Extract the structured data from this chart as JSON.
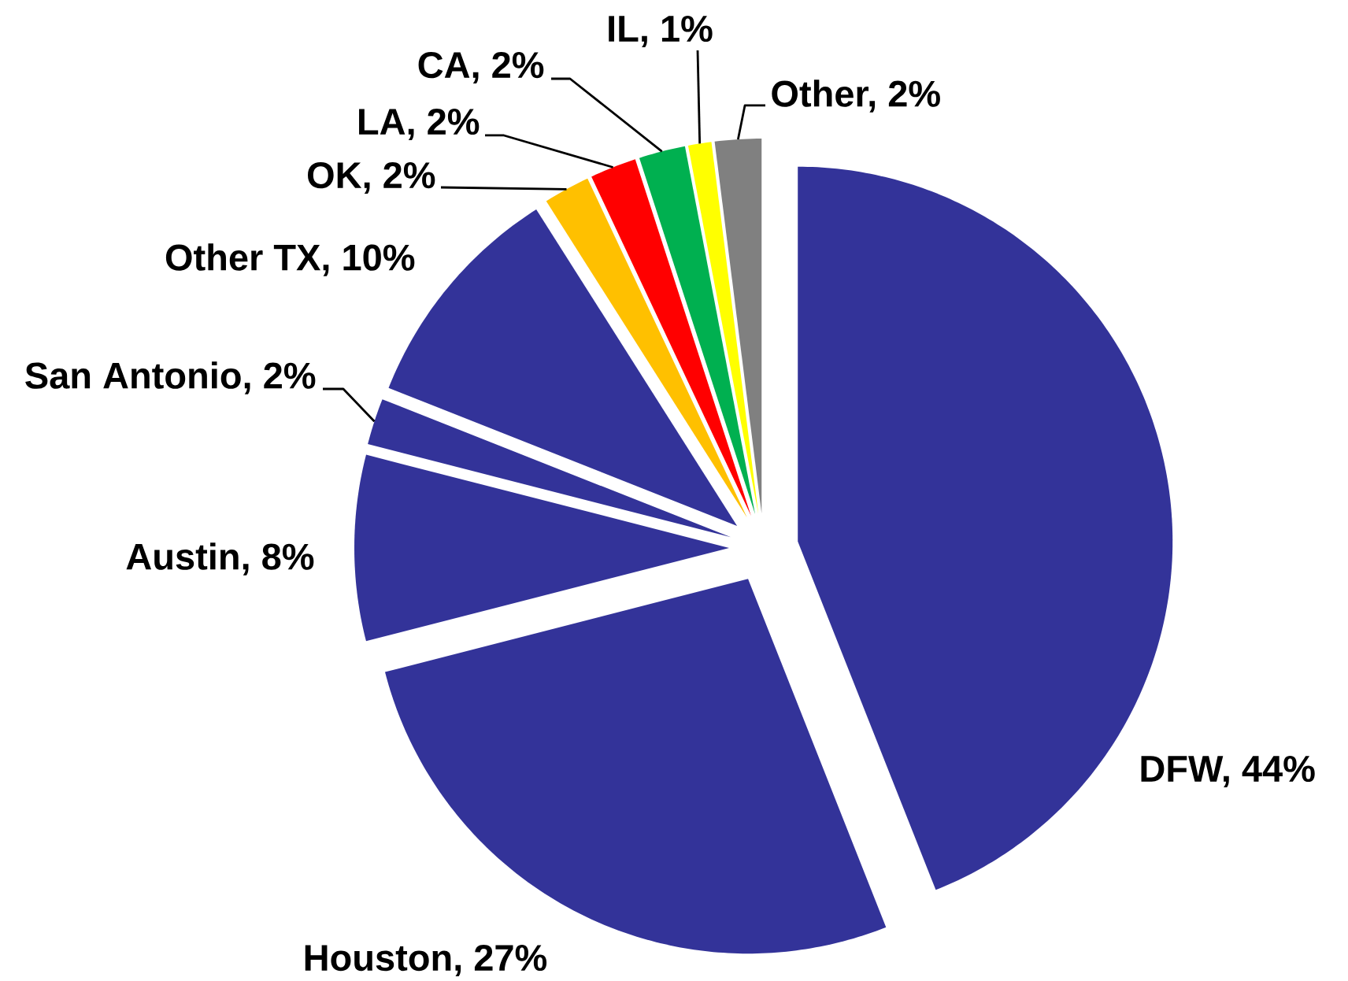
{
  "chart_data": {
    "type": "pie",
    "categories": [
      "DFW, 44%",
      "Houston, 27%",
      "Austin, 8%",
      "San Antonio, 2%",
      "Other TX, 10%",
      "OK, 2%",
      "LA, 2%",
      "CA, 2%",
      "IL, 1%",
      "Other, 2%"
    ],
    "values": [
      44,
      27,
      8,
      2,
      10,
      2,
      2,
      2,
      1,
      2
    ],
    "colors": [
      "#333399",
      "#333399",
      "#333399",
      "#333399",
      "#333399",
      "#ffc000",
      "#ff0000",
      "#00b050",
      "#ffff00",
      "#808080"
    ]
  }
}
